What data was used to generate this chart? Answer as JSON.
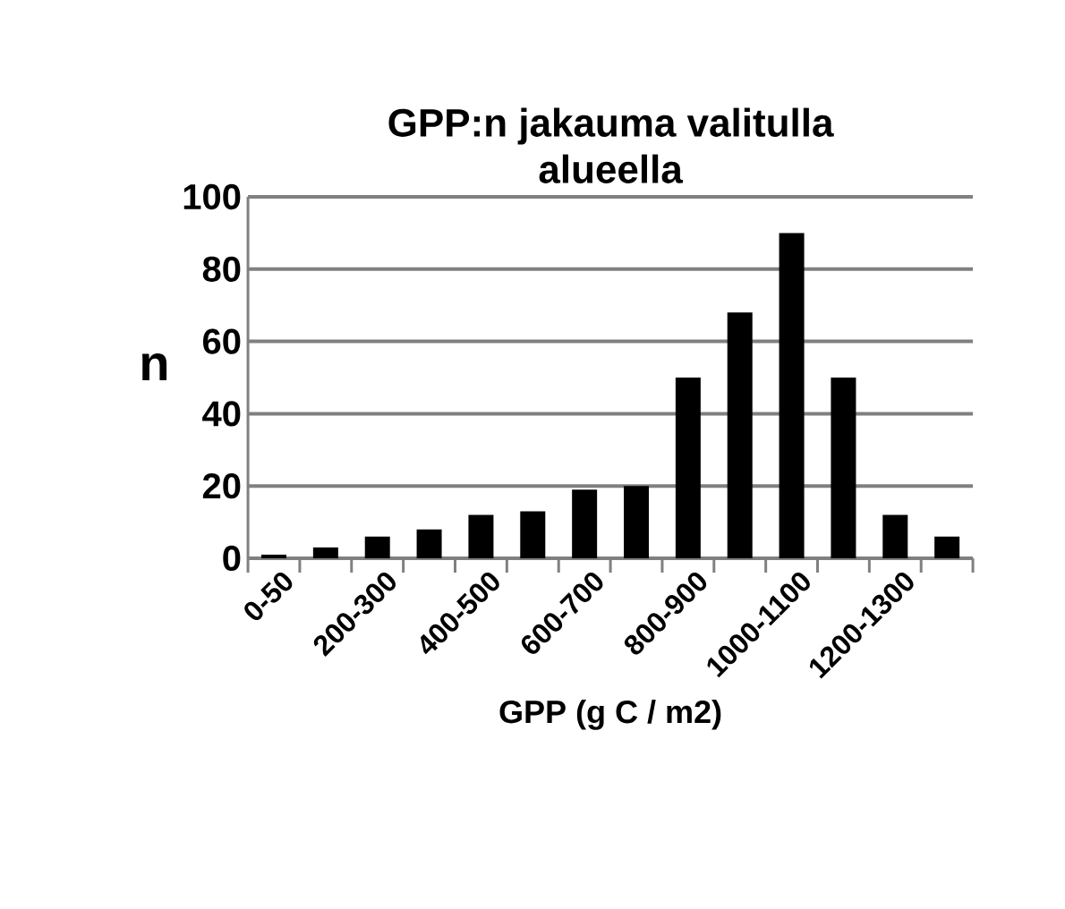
{
  "chart_data": {
    "type": "bar",
    "title": "GPP:n jakauma valitulla alueella",
    "xlabel": "GPP (g C / m2)",
    "ylabel": "n",
    "categories": [
      "0-50",
      null,
      "200-300",
      null,
      "400-500",
      null,
      "600-700",
      null,
      "800-900",
      null,
      "1000-1100",
      null,
      "1200-1300",
      null
    ],
    "values": [
      1,
      3,
      6,
      8,
      12,
      13,
      19,
      20,
      50,
      68,
      90,
      50,
      12,
      6
    ],
    "color": "#000000",
    "ylim": [
      0,
      100
    ],
    "yticks": [
      0,
      20,
      40,
      60,
      80,
      100
    ],
    "grid": "y"
  }
}
